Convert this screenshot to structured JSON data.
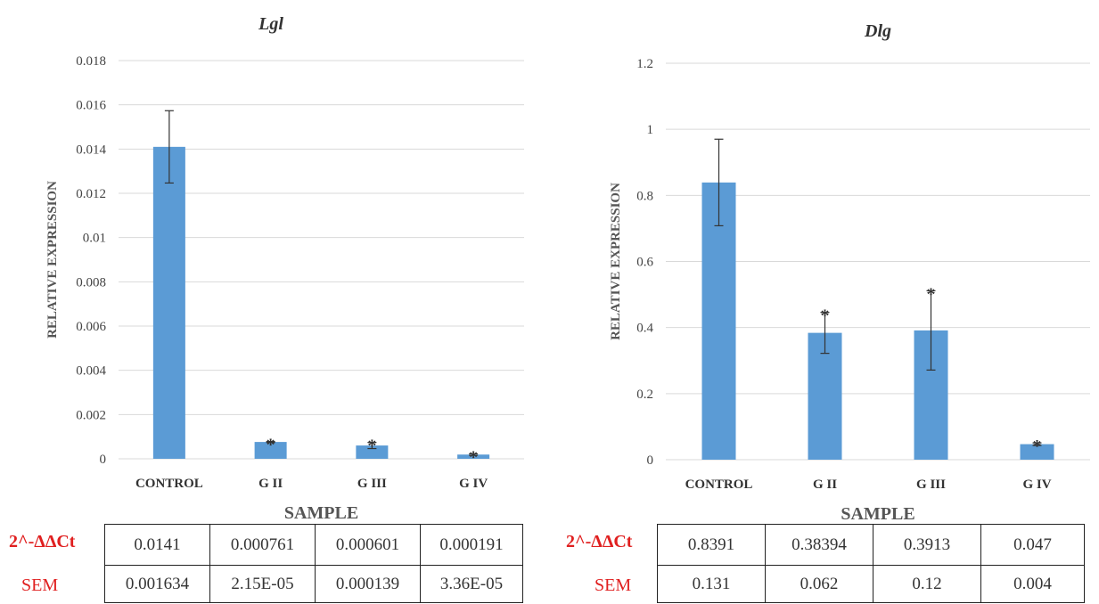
{
  "chart_data": [
    {
      "type": "bar",
      "title": "Lgl",
      "xlabel": "SAMPLE",
      "ylabel": "RELATIVE EXPRESSION",
      "categories": [
        "CONTROL",
        "G II",
        "G III",
        "G IV"
      ],
      "values": [
        0.0141,
        0.000761,
        0.000601,
        0.000191
      ],
      "errors": [
        0.001634,
        2.15e-05,
        0.000139,
        3.36e-05
      ],
      "significant": [
        false,
        true,
        true,
        true
      ],
      "significance_marker": "*",
      "ylim": [
        0,
        0.018
      ],
      "yticks": [
        "0",
        "0.002",
        "0.004",
        "0.006",
        "0.008",
        "0.01",
        "0.012",
        "0.014",
        "0.016",
        "0.018"
      ],
      "grid": true,
      "bar_color": "#5b9bd5",
      "table": {
        "rows": [
          {
            "label": "2^-ΔΔCt",
            "cells": [
              "0.0141",
              "0.000761",
              "0.000601",
              "0.000191"
            ]
          },
          {
            "label": "SEM",
            "cells": [
              "0.001634",
              "2.15E-05",
              "0.000139",
              "3.36E-05"
            ]
          }
        ]
      }
    },
    {
      "type": "bar",
      "title": "Dlg",
      "xlabel": "SAMPLE",
      "ylabel": "RELATIVE EXPRESSION",
      "categories": [
        "CONTROL",
        "G II",
        "G III",
        "G IV"
      ],
      "values": [
        0.8391,
        0.38394,
        0.3913,
        0.047
      ],
      "errors": [
        0.131,
        0.062,
        0.12,
        0.004
      ],
      "significant": [
        false,
        true,
        true,
        true
      ],
      "significance_marker": "*",
      "ylim": [
        0,
        1.2
      ],
      "yticks": [
        "0",
        "0.2",
        "0.4",
        "0.6",
        "0.8",
        "1",
        "1.2"
      ],
      "grid": true,
      "bar_color": "#5b9bd5",
      "table": {
        "rows": [
          {
            "label": "2^-ΔΔCt",
            "cells": [
              "0.8391",
              "0.38394",
              "0.3913",
              "0.047"
            ]
          },
          {
            "label": "SEM",
            "cells": [
              "0.131",
              "0.062",
              "0.12",
              "0.004"
            ]
          }
        ]
      }
    }
  ],
  "colors": {
    "bar": "#5b9bd5",
    "table_row_label": "#e02020",
    "grid": "#d9d9d9"
  }
}
